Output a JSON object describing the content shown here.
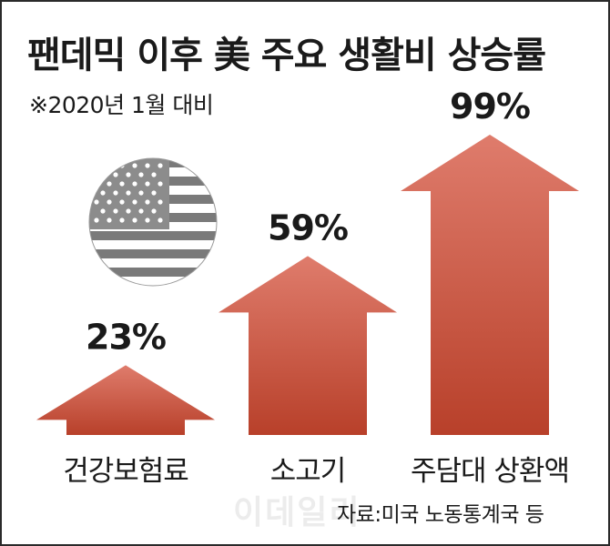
{
  "title": "팬데믹 이후 美 주요 생활비 상승률",
  "subtitle": "※2020년 1월 대비",
  "source": "자료:미국 노동통계국 등",
  "watermark": "이데일리",
  "colors": {
    "arrow_top": "#df7c6c",
    "arrow_bottom": "#b8402a",
    "text": "#1a1a1a",
    "flag_gray": "#7a7a7a"
  },
  "icon": "us-flag-globe-icon",
  "chart_data": {
    "type": "bar",
    "subtype": "arrow-bar",
    "title": "팬데믹 이후 美 주요 생활비 상승률",
    "subtitle": "※2020년 1월 대비",
    "categories": [
      "건강보험료",
      "소고기",
      "주담대 상환액"
    ],
    "values": [
      23,
      59,
      99
    ],
    "value_labels": [
      "23%",
      "59%",
      "99%"
    ],
    "unit": "%",
    "ylim": [
      0,
      99
    ],
    "grid": false,
    "legend": "none"
  }
}
